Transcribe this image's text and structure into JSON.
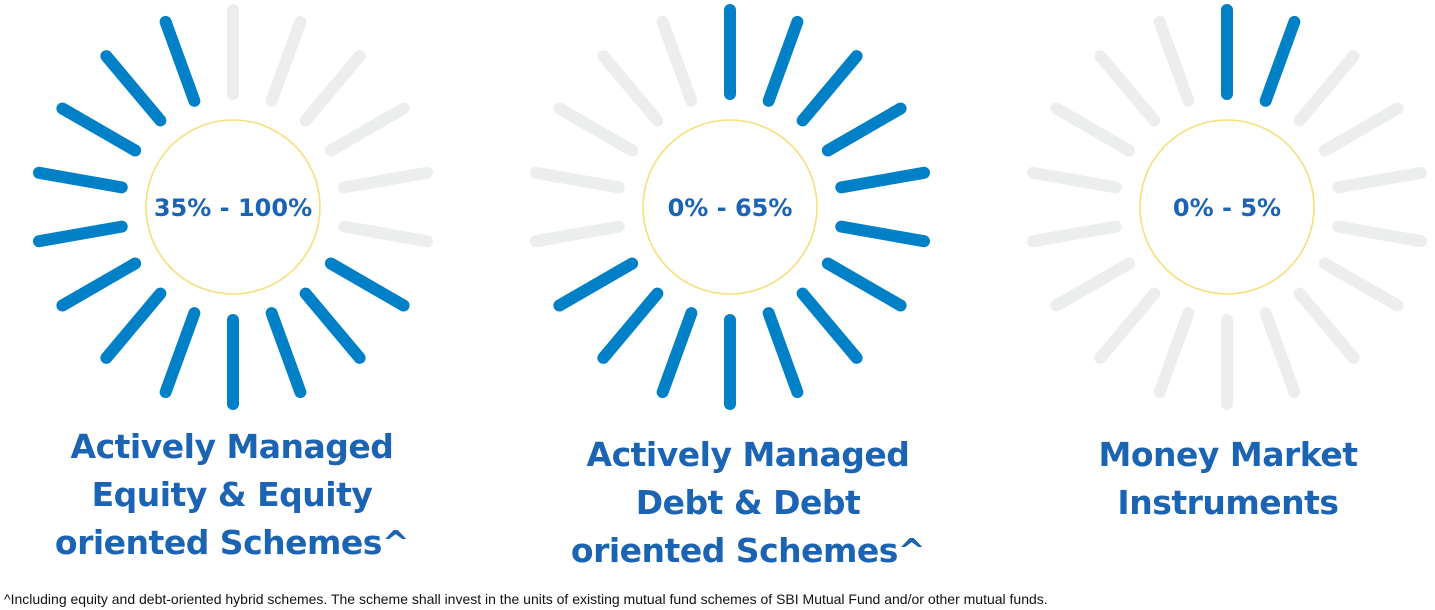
{
  "colors": {
    "active": "#0080c6",
    "inactive": "#eceded",
    "ring": "#f7de7c",
    "text": "#1b63b3"
  },
  "total_segments": 18,
  "dials": [
    {
      "range": "35% - 100%",
      "title": [
        "Actively Managed",
        "Equity & Equity",
        "oriented Schemes^"
      ],
      "active_segments": [
        6,
        7,
        8,
        9,
        10,
        11,
        12,
        13,
        14,
        15,
        16,
        17
      ]
    },
    {
      "range": "0% - 65%",
      "title": [
        "Actively Managed",
        "Debt & Debt",
        "oriented Schemes^"
      ],
      "active_segments": [
        0,
        1,
        2,
        3,
        4,
        5,
        6,
        7,
        8,
        9,
        10,
        11,
        12
      ]
    },
    {
      "range": "0% - 5%",
      "title": [
        "Money Market",
        "Instruments"
      ],
      "active_segments": [
        0,
        1
      ]
    }
  ],
  "footnote": "^Including equity and debt-oriented hybrid schemes. The scheme shall invest in the units of existing mutual fund schemes of SBI Mutual Fund and/or other mutual funds."
}
